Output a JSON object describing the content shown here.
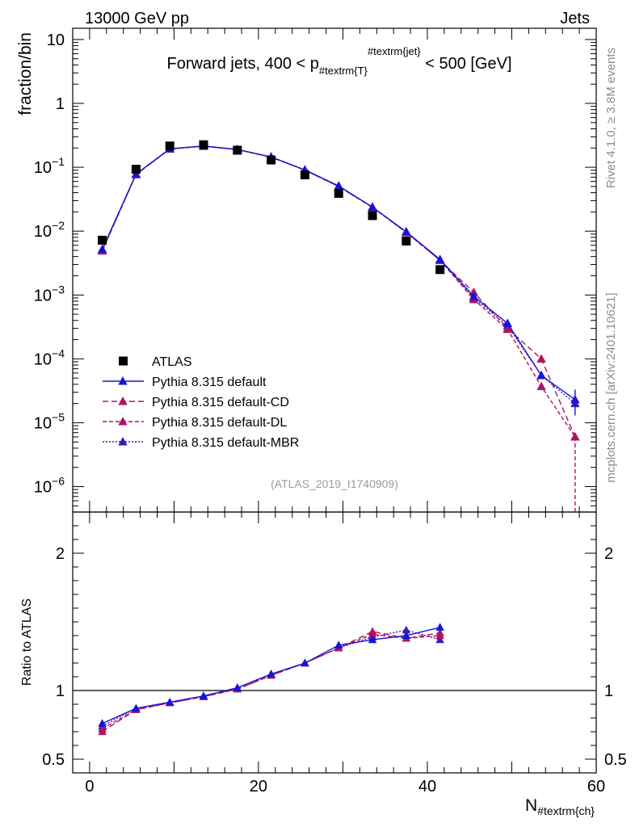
{
  "header": {
    "left": "13000 GeV pp",
    "right": "Jets"
  },
  "side_labels": {
    "upper": "Rivet 4.1.0, ≥ 3.8M events",
    "lower": "mcplots.cern.ch [arXiv:2401.10621]"
  },
  "chart_data": [
    {
      "type": "scatter",
      "panel": "main",
      "title": "Forward jets, 400 < p_{#textrm{T}}^{#textrm{jet}} < 500 [GeV]",
      "title_parts": {
        "pre": "Forward jets, 400 < p",
        "sub": "#textrm{T}",
        "sup": "#textrm{jet}",
        "post": " < 500 [GeV]"
      },
      "ylabel": "fraction/bin",
      "yscale": "log",
      "ylim": [
        4e-07,
        15
      ],
      "xlim": [
        -2,
        60
      ],
      "ytick_labels": [
        {
          "v": 10,
          "m": "10",
          "e": ""
        },
        {
          "v": 1,
          "m": "1",
          "e": ""
        },
        {
          "v": 0.1,
          "m": "10",
          "e": "−1"
        },
        {
          "v": 0.01,
          "m": "10",
          "e": "−2"
        },
        {
          "v": 0.001,
          "m": "10",
          "e": "−3"
        },
        {
          "v": 0.0001,
          "m": "10",
          "e": "−4"
        },
        {
          "v": 1e-05,
          "m": "10",
          "e": "−5"
        },
        {
          "v": 1e-06,
          "m": "10",
          "e": "−6"
        }
      ],
      "watermark": "(ATLAS_2019_I1740909)",
      "x": [
        1.5,
        5.5,
        9.5,
        13.5,
        17.5,
        21.5,
        25.5,
        29.5,
        33.5,
        37.5,
        41.5,
        45.5,
        49.5,
        53.5,
        57.5
      ],
      "series": [
        {
          "name": "ATLAS",
          "color": "#000000",
          "marker": "square",
          "values": [
            0.0072,
            0.093,
            0.215,
            0.225,
            0.185,
            0.13,
            0.076,
            0.039,
            0.0175,
            0.007,
            0.0025,
            null,
            null,
            null,
            null
          ]
        },
        {
          "name": "Pythia 8.315 default",
          "color": "#1515d6",
          "marker": "triangle",
          "dash": "",
          "values": [
            0.0052,
            0.078,
            0.195,
            0.215,
            0.19,
            0.145,
            0.091,
            0.051,
            0.0238,
            0.0098,
            0.0036,
            0.00095,
            0.00036,
            5.5e-05,
            2.3e-05
          ],
          "errors": [
            null,
            null,
            null,
            null,
            null,
            null,
            null,
            null,
            null,
            null,
            null,
            null,
            null,
            null,
            1e-05
          ]
        },
        {
          "name": "Pythia 8.315 default-CD",
          "color": "#b0155a",
          "marker": "triangle",
          "dash": "7,4",
          "values": [
            0.0049,
            0.077,
            0.193,
            0.214,
            0.189,
            0.144,
            0.09,
            0.05,
            0.0237,
            0.0096,
            0.0035,
            0.0011,
            0.0003,
            0.0001,
            6e-06
          ]
        },
        {
          "name": "Pythia 8.315 default-DL",
          "color": "#b01070",
          "marker": "triangle",
          "dash": "5,3",
          "values": [
            0.0049,
            0.077,
            0.193,
            0.213,
            0.189,
            0.144,
            0.09,
            0.05,
            0.0235,
            0.0095,
            0.0035,
            0.00085,
            0.00029,
            3.7e-05,
            6e-06
          ]
        },
        {
          "name": "Pythia 8.315 default-MBR",
          "color": "#401ab0",
          "marker": "triangle",
          "dash": "2,2",
          "values": [
            0.005,
            0.078,
            0.194,
            0.215,
            0.189,
            0.145,
            0.091,
            0.051,
            0.0236,
            0.0097,
            0.0035,
            0.0009,
            0.00033,
            5.5e-05,
            2e-05
          ]
        }
      ]
    },
    {
      "type": "line",
      "panel": "ratio",
      "ylabel": "Ratio to ATLAS",
      "xlabel": "N_{#textrm{ch}}",
      "xlabel_parts": {
        "main": "N",
        "sub": "#textrm{ch}"
      },
      "xlim": [
        -2,
        60
      ],
      "ylim": [
        0.4,
        2.3
      ],
      "xticks": [
        0,
        20,
        40,
        60
      ],
      "yticks": [
        0.5,
        1,
        2
      ],
      "x": [
        1.5,
        5.5,
        9.5,
        13.5,
        17.5,
        21.5,
        25.5,
        29.5,
        33.5,
        37.5,
        41.5
      ],
      "series": [
        {
          "name": "Pythia 8.315 default",
          "color": "#1515d6",
          "dash": "",
          "values": [
            0.76,
            0.87,
            0.915,
            0.96,
            1.02,
            1.12,
            1.2,
            1.33,
            1.37,
            1.4,
            1.46
          ]
        },
        {
          "name": "Pythia 8.315 default-CD",
          "color": "#b0155a",
          "dash": "7,4",
          "values": [
            0.7,
            0.86,
            0.91,
            0.955,
            1.01,
            1.11,
            1.2,
            1.31,
            1.43,
            1.38,
            1.42
          ]
        },
        {
          "name": "Pythia 8.315 default-DL",
          "color": "#b01070",
          "dash": "5,3",
          "values": [
            0.72,
            0.86,
            0.91,
            0.955,
            1.01,
            1.11,
            1.2,
            1.31,
            1.41,
            1.38,
            1.4
          ]
        },
        {
          "name": "Pythia 8.315 default-MBR",
          "color": "#401ab0",
          "dash": "2,2",
          "values": [
            0.74,
            0.87,
            0.915,
            0.96,
            1.02,
            1.12,
            1.2,
            1.31,
            1.39,
            1.44,
            1.37
          ]
        }
      ]
    }
  ]
}
